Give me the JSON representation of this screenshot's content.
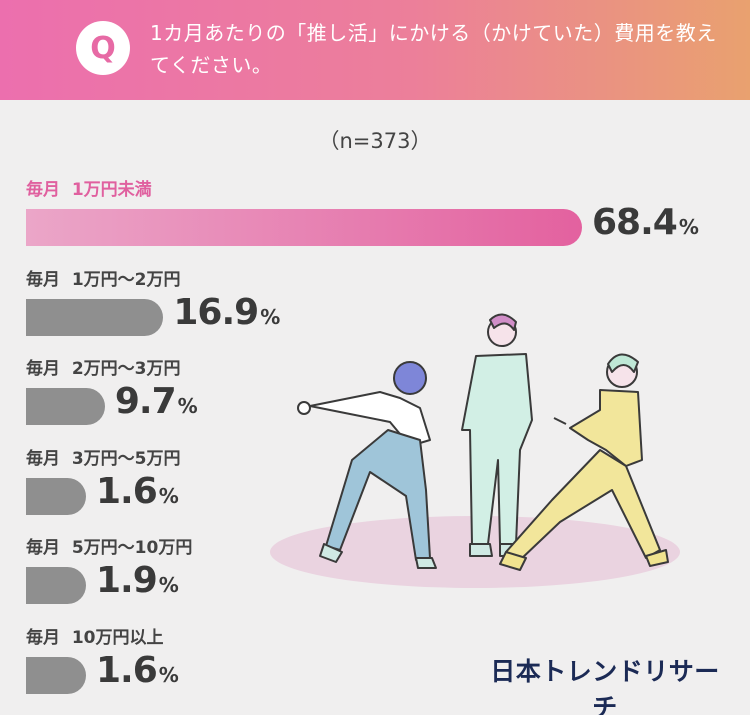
{
  "header": {
    "badge": "Q",
    "question": "1カ月あたりの「推し活」にかける（かけていた）費用を教えてください。"
  },
  "sample_size": "（n=373）",
  "brand": "日本トレンドリサーチ",
  "colors": {
    "highlight_bar": "#e3619f",
    "highlight_label": "#e0609f",
    "other_bars": "#8f8f8f",
    "header_start": "#ec6fae",
    "header_end": "#e9a16f"
  },
  "chart_data": {
    "type": "bar",
    "orientation": "horizontal",
    "title": "1カ月あたりの「推し活」にかける（かけていた）費用を教えてください。",
    "unit": "%",
    "categories": [
      "毎月  1万円未満",
      "毎月  1万円〜2万円",
      "毎月  2万円〜3万円",
      "毎月  3万円〜5万円",
      "毎月  5万円〜10万円",
      "毎月  10万円以上"
    ],
    "values": [
      68.4,
      16.9,
      9.7,
      1.6,
      1.9,
      1.6
    ],
    "value_labels": [
      "68.4",
      "16.9",
      "9.7",
      "1.6",
      "1.9",
      "1.6"
    ],
    "highlighted_index": 0,
    "xlim": [
      0,
      68.4
    ],
    "grid": false,
    "legend": "none"
  }
}
